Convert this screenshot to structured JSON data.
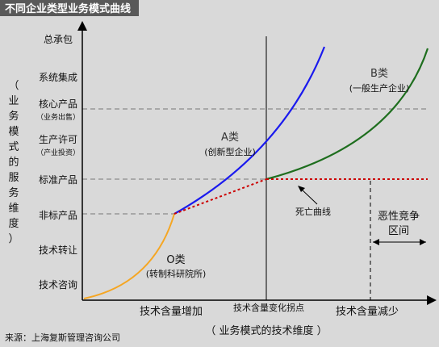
{
  "title": "不同企业类型业务模式曲线",
  "y_axis": {
    "label_chars": [
      "（",
      "业",
      "务",
      "模",
      "式",
      "的",
      "服",
      "务",
      "维",
      "度",
      "）"
    ],
    "levels": [
      {
        "label": "总承包",
        "sub": ""
      },
      {
        "label": "系统集成",
        "sub": ""
      },
      {
        "label": "核心产品",
        "sub": "（业务出售）"
      },
      {
        "label": "生产许可",
        "sub": "（产业投资）"
      },
      {
        "label": "标准产品",
        "sub": ""
      },
      {
        "label": "非标产品",
        "sub": ""
      },
      {
        "label": "技术转让",
        "sub": ""
      },
      {
        "label": "技术咨询",
        "sub": ""
      }
    ]
  },
  "x_axis": {
    "increase_label": "技术含量增加",
    "inflection_label": "技术含量变化拐点",
    "decrease_label": "技术含量减少",
    "axis_title": "（ 业务模式的技术维度 ）"
  },
  "curves": {
    "o": {
      "name": "O类",
      "desc": "(转制科研院所)",
      "color": "#f5a623"
    },
    "a": {
      "name": "A类",
      "desc": "(创新型企业)",
      "color": "#1a1aee"
    },
    "b": {
      "name": "B类",
      "desc": "(一般生产企业)",
      "color": "#1e6e1e"
    },
    "death": {
      "name": "死亡曲线",
      "color": "#cc0000"
    }
  },
  "vicious": {
    "line1": "恶性竞争",
    "line2": "区间"
  },
  "source": "来源：上海复斯管理咨询公司"
}
